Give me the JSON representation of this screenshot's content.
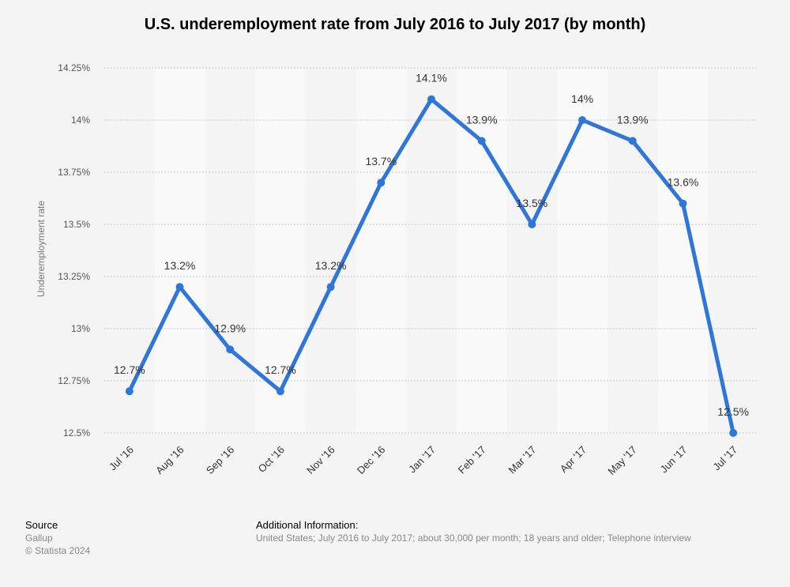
{
  "chart_data": {
    "type": "line",
    "title": "U.S. underemployment rate from July 2016 to July 2017 (by month)",
    "ylabel": "Underemployment rate",
    "xlabel": "",
    "categories": [
      "Jul '16",
      "Aug '16",
      "Sep '16",
      "Oct '16",
      "Nov '16",
      "Dec '16",
      "Jan '17",
      "Feb '17",
      "Mar '17",
      "Apr '17",
      "May '17",
      "Jun '17",
      "Jul '17"
    ],
    "values": [
      12.7,
      13.2,
      12.9,
      12.7,
      13.2,
      13.7,
      14.1,
      13.9,
      13.5,
      14.0,
      13.9,
      13.6,
      12.5
    ],
    "data_labels": [
      "12.7%",
      "13.2%",
      "12.9%",
      "12.7%",
      "13.2%",
      "13.7%",
      "14.1%",
      "13.9%",
      "13.5%",
      "14%",
      "13.9%",
      "13.6%",
      "12.5%"
    ],
    "y_ticks": [
      12.5,
      12.75,
      13,
      13.25,
      13.5,
      13.75,
      14,
      14.25
    ],
    "y_tick_labels": [
      "12.5%",
      "12.75%",
      "13%",
      "13.25%",
      "13.5%",
      "13.75%",
      "14%",
      "14.25%"
    ],
    "ylim": [
      12.5,
      14.25
    ],
    "grid": true,
    "legend": "none",
    "line_color": "#2f76d9"
  },
  "footer": {
    "source_heading": "Source",
    "source_name": "Gallup",
    "copyright": "© Statista 2024",
    "info_heading": "Additional Information:",
    "info_text": "United States; July 2016 to July 2017; about 30,000 per month; 18 years and older; Telephone interview"
  }
}
